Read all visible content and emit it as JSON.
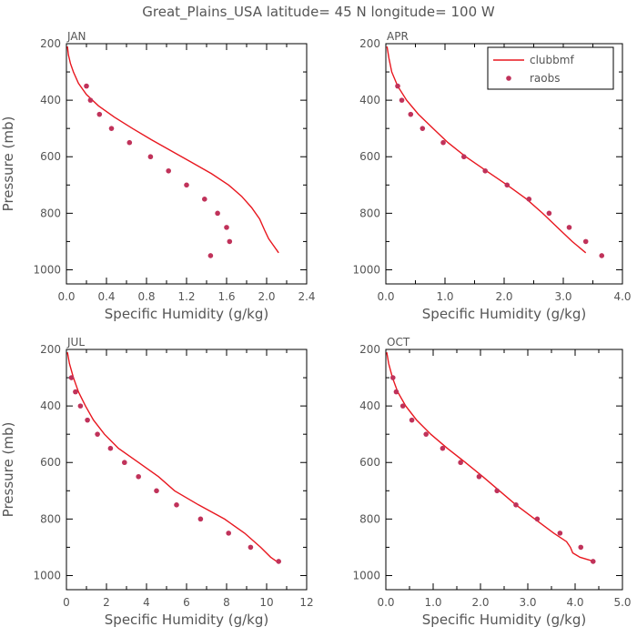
{
  "title": "Great_Plains_USA   latitude= 45 N longitude= 100 W",
  "colors": {
    "model": "#e8171f",
    "obs": "#c0325a",
    "frame": "#000000",
    "text": "#555555"
  },
  "legend": {
    "placement": "top-right of APR panel",
    "model_label": "clubbmf",
    "obs_label": "raobs"
  },
  "chart_data": [
    {
      "type": "line",
      "panel": "JAN",
      "xlabel": "Specific Humidity (g/kg)",
      "ylabel": "Pressure (mb)",
      "xlim": [
        0,
        2.4
      ],
      "ylim": [
        200,
        1050
      ],
      "y_inverted": true,
      "xticks": [
        0.0,
        0.4,
        0.8,
        1.2,
        1.6,
        2.0,
        2.4
      ],
      "xtick_labels": [
        "0.0",
        "0.4",
        "0.8",
        "1.2",
        "1.6",
        "2.0",
        "2.4"
      ],
      "yticks": [
        200,
        400,
        600,
        800,
        1000
      ],
      "ytick_labels": [
        "200",
        "400",
        "600",
        "800",
        "1000"
      ],
      "series": [
        {
          "name": "clubbmf",
          "kind": "line",
          "points": [
            [
              0.01,
              210
            ],
            [
              0.02,
              240
            ],
            [
              0.04,
              270
            ],
            [
              0.07,
              300
            ],
            [
              0.12,
              340
            ],
            [
              0.2,
              380
            ],
            [
              0.32,
              420
            ],
            [
              0.48,
              460
            ],
            [
              0.66,
              500
            ],
            [
              0.85,
              540
            ],
            [
              1.05,
              580
            ],
            [
              1.25,
              620
            ],
            [
              1.45,
              660
            ],
            [
              1.62,
              700
            ],
            [
              1.75,
              740
            ],
            [
              1.85,
              780
            ],
            [
              1.93,
              820
            ],
            [
              1.98,
              860
            ],
            [
              2.02,
              890
            ],
            [
              2.06,
              910
            ],
            [
              2.1,
              930
            ],
            [
              2.12,
              940
            ]
          ]
        },
        {
          "name": "raobs",
          "kind": "scatter",
          "points": [
            [
              0.2,
              350
            ],
            [
              0.24,
              400
            ],
            [
              0.33,
              450
            ],
            [
              0.45,
              500
            ],
            [
              0.63,
              550
            ],
            [
              0.84,
              600
            ],
            [
              1.02,
              650
            ],
            [
              1.2,
              700
            ],
            [
              1.38,
              750
            ],
            [
              1.51,
              800
            ],
            [
              1.6,
              850
            ],
            [
              1.63,
              900
            ],
            [
              1.44,
              950
            ]
          ]
        }
      ]
    },
    {
      "type": "line",
      "panel": "APR",
      "xlabel": "Specific Humidity (g/kg)",
      "ylabel": "",
      "xlim": [
        0,
        4.0
      ],
      "ylim": [
        200,
        1050
      ],
      "y_inverted": true,
      "xticks": [
        0.0,
        1.0,
        2.0,
        3.0,
        4.0
      ],
      "xtick_labels": [
        "0.0",
        "1.0",
        "2.0",
        "3.0",
        "4.0"
      ],
      "yticks": [
        200,
        400,
        600,
        800,
        1000
      ],
      "ytick_labels": [
        "200",
        "400",
        "600",
        "800",
        "1000"
      ],
      "series": [
        {
          "name": "clubbmf",
          "kind": "line",
          "points": [
            [
              0.02,
              210
            ],
            [
              0.05,
              250
            ],
            [
              0.1,
              300
            ],
            [
              0.2,
              350
            ],
            [
              0.35,
              400
            ],
            [
              0.55,
              450
            ],
            [
              0.8,
              500
            ],
            [
              1.05,
              550
            ],
            [
              1.35,
              600
            ],
            [
              1.7,
              650
            ],
            [
              2.05,
              700
            ],
            [
              2.38,
              750
            ],
            [
              2.65,
              800
            ],
            [
              2.9,
              850
            ],
            [
              3.15,
              900
            ],
            [
              3.38,
              940
            ]
          ]
        },
        {
          "name": "raobs",
          "kind": "scatter",
          "points": [
            [
              0.2,
              350
            ],
            [
              0.27,
              400
            ],
            [
              0.42,
              450
            ],
            [
              0.62,
              500
            ],
            [
              0.97,
              550
            ],
            [
              1.32,
              600
            ],
            [
              1.68,
              650
            ],
            [
              2.05,
              700
            ],
            [
              2.42,
              750
            ],
            [
              2.76,
              800
            ],
            [
              3.1,
              850
            ],
            [
              3.38,
              900
            ],
            [
              3.65,
              950
            ]
          ]
        }
      ]
    },
    {
      "type": "line",
      "panel": "JUL",
      "xlabel": "Specific Humidity (g/kg)",
      "ylabel": "Pressure (mb)",
      "xlim": [
        0,
        12
      ],
      "ylim": [
        200,
        1050
      ],
      "y_inverted": true,
      "xticks": [
        0,
        2,
        4,
        6,
        8,
        10,
        12
      ],
      "xtick_labels": [
        "0",
        "2",
        "4",
        "6",
        "8",
        "10",
        "12"
      ],
      "yticks": [
        200,
        400,
        600,
        800,
        1000
      ],
      "ytick_labels": [
        "200",
        "400",
        "600",
        "800",
        "1000"
      ],
      "series": [
        {
          "name": "clubbmf",
          "kind": "line",
          "points": [
            [
              0.05,
              210
            ],
            [
              0.15,
              250
            ],
            [
              0.35,
              300
            ],
            [
              0.6,
              350
            ],
            [
              0.95,
              400
            ],
            [
              1.35,
              450
            ],
            [
              1.9,
              500
            ],
            [
              2.6,
              550
            ],
            [
              3.6,
              600
            ],
            [
              4.6,
              650
            ],
            [
              5.4,
              700
            ],
            [
              6.6,
              750
            ],
            [
              7.9,
              800
            ],
            [
              8.9,
              850
            ],
            [
              9.7,
              900
            ],
            [
              10.2,
              935
            ],
            [
              10.5,
              950
            ]
          ]
        },
        {
          "name": "raobs",
          "kind": "scatter",
          "points": [
            [
              0.25,
              300
            ],
            [
              0.45,
              350
            ],
            [
              0.7,
              400
            ],
            [
              1.05,
              450
            ],
            [
              1.55,
              500
            ],
            [
              2.2,
              550
            ],
            [
              2.9,
              600
            ],
            [
              3.6,
              650
            ],
            [
              4.5,
              700
            ],
            [
              5.5,
              750
            ],
            [
              6.7,
              800
            ],
            [
              8.1,
              850
            ],
            [
              9.2,
              900
            ],
            [
              10.6,
              950
            ]
          ]
        }
      ]
    },
    {
      "type": "line",
      "panel": "OCT",
      "xlabel": "Specific Humidity (g/kg)",
      "ylabel": "",
      "xlim": [
        0,
        5.0
      ],
      "ylim": [
        200,
        1050
      ],
      "y_inverted": true,
      "xticks": [
        0.0,
        1.0,
        2.0,
        3.0,
        4.0,
        5.0
      ],
      "xtick_labels": [
        "0.0",
        "1.0",
        "2.0",
        "3.0",
        "4.0",
        "5.0"
      ],
      "yticks": [
        200,
        400,
        600,
        800,
        1000
      ],
      "ytick_labels": [
        "200",
        "400",
        "600",
        "800",
        "1000"
      ],
      "series": [
        {
          "name": "clubbmf",
          "kind": "line",
          "points": [
            [
              0.02,
              210
            ],
            [
              0.06,
              250
            ],
            [
              0.14,
              300
            ],
            [
              0.25,
              350
            ],
            [
              0.42,
              400
            ],
            [
              0.65,
              450
            ],
            [
              0.95,
              500
            ],
            [
              1.3,
              550
            ],
            [
              1.68,
              600
            ],
            [
              2.05,
              650
            ],
            [
              2.4,
              700
            ],
            [
              2.75,
              750
            ],
            [
              3.15,
              800
            ],
            [
              3.55,
              850
            ],
            [
              3.82,
              880
            ],
            [
              3.9,
              900
            ],
            [
              3.95,
              920
            ],
            [
              4.1,
              935
            ],
            [
              4.3,
              945
            ],
            [
              4.4,
              950
            ]
          ]
        },
        {
          "name": "raobs",
          "kind": "scatter",
          "points": [
            [
              0.15,
              300
            ],
            [
              0.22,
              350
            ],
            [
              0.36,
              400
            ],
            [
              0.55,
              450
            ],
            [
              0.85,
              500
            ],
            [
              1.2,
              550
            ],
            [
              1.58,
              600
            ],
            [
              1.97,
              650
            ],
            [
              2.35,
              700
            ],
            [
              2.75,
              750
            ],
            [
              3.2,
              800
            ],
            [
              3.68,
              850
            ],
            [
              4.12,
              900
            ],
            [
              4.38,
              950
            ]
          ]
        }
      ]
    }
  ]
}
